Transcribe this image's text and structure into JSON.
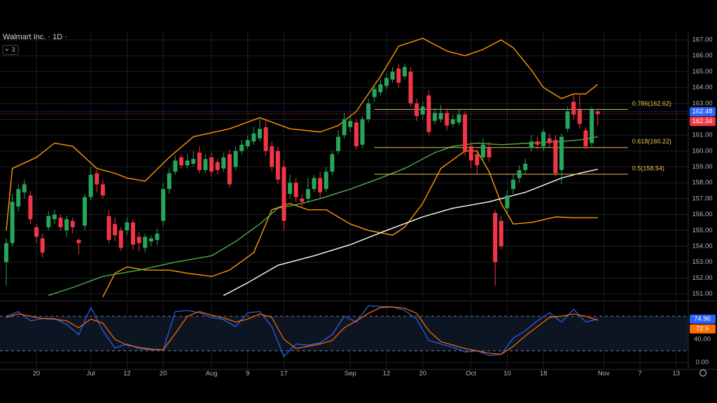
{
  "header": {
    "title": "Walmart Inc. · 1D ·",
    "badge": 3
  },
  "chart_data": [
    {
      "type": "candlestick",
      "up_color": "#26a65b",
      "down_color": "#f23645",
      "grid": true,
      "xlim": [
        -1.04,
        113
      ],
      "ylim": [
        150.65,
        167.53
      ],
      "yticks": [
        {
          "value": 151,
          "label": "151.00"
        },
        {
          "value": 152,
          "label": "152.00"
        },
        {
          "value": 153,
          "label": "153.00"
        },
        {
          "value": 154,
          "label": "154.00"
        },
        {
          "value": 155,
          "label": "155.00"
        },
        {
          "value": 156,
          "label": "156.00"
        },
        {
          "value": 157,
          "label": "157.00"
        },
        {
          "value": 158,
          "label": "158.00"
        },
        {
          "value": 159,
          "label": "159.00"
        },
        {
          "value": 160,
          "label": "160.00"
        },
        {
          "value": 161,
          "label": "161.00"
        },
        {
          "value": 162,
          "label": "162.00"
        },
        {
          "value": 163,
          "label": "163.00"
        },
        {
          "value": 164,
          "label": "164.00"
        },
        {
          "value": 165,
          "label": "165.00"
        },
        {
          "value": 166,
          "label": "166.00"
        },
        {
          "value": 167,
          "label": "167.00"
        }
      ],
      "candles": {
        "open": [
          153.0,
          154.2,
          156.5,
          157.4,
          157.2,
          155.2,
          154.5,
          155.2,
          155.7,
          155.8,
          155.0,
          155.6,
          154.4,
          155.3,
          157.1,
          158.6,
          157.9,
          155.9,
          155.4,
          155.0,
          155.0,
          155.5,
          154.6,
          153.9,
          154.3,
          154.4,
          155.6,
          157.6,
          158.7,
          159.6,
          159.1,
          159.2,
          159.9,
          158.8,
          159.6,
          159.3,
          158.9,
          159.8,
          159.0,
          160.0,
          160.3,
          160.6,
          160.8,
          161.5,
          160.3,
          160.0,
          159.0,
          157.3,
          158.0,
          157.0,
          157.0,
          157.6,
          158.3,
          157.6,
          158.7,
          160.0,
          161.0,
          161.5,
          161.8,
          160.4,
          162.0,
          163.4,
          163.7,
          164.1,
          164.5,
          165.2,
          164.7,
          165.0,
          163.0,
          162.3,
          163.5,
          161.9,
          162.0,
          162.4,
          161.7,
          161.8,
          162.3,
          160.3,
          159.8,
          159.6,
          160.2,
          156.1,
          155.6,
          156.4,
          157.6,
          158.3,
          158.8,
          160.2,
          160.6,
          160.3,
          160.8,
          160.7,
          158.8,
          161.4,
          163.1,
          162.6,
          161.3,
          160.5,
          162.5
        ],
        "high": [
          154.5,
          157.3,
          157.9,
          158.2,
          157.5,
          155.4,
          154.8,
          156.2,
          156.3,
          156.0,
          155.9,
          155.8,
          154.5,
          157.3,
          159.0,
          158.8,
          158.2,
          156.3,
          155.8,
          155.2,
          155.8,
          155.7,
          154.9,
          154.8,
          154.7,
          155.1,
          158.0,
          158.9,
          159.7,
          159.8,
          159.8,
          160.0,
          160.3,
          159.8,
          159.9,
          159.5,
          159.9,
          160.1,
          160.3,
          160.7,
          161.0,
          161.5,
          162.0,
          161.9,
          160.6,
          160.3,
          159.4,
          158.5,
          158.3,
          157.3,
          158.3,
          158.5,
          158.7,
          159.0,
          160.0,
          161.3,
          162.4,
          162.2,
          162.0,
          162.2,
          163.3,
          164.2,
          164.5,
          164.9,
          165.3,
          165.5,
          165.5,
          165.3,
          163.3,
          163.1,
          163.8,
          162.7,
          162.9,
          162.7,
          162.3,
          162.6,
          162.5,
          160.6,
          160.1,
          160.8,
          160.6,
          156.3,
          155.9,
          157.5,
          158.5,
          159.1,
          159.5,
          161.0,
          160.9,
          161.4,
          161.1,
          161.0,
          161.1,
          162.8,
          163.6,
          163.6,
          161.5,
          162.8,
          162.6
        ],
        "low": [
          151.5,
          154.0,
          156.2,
          157.0,
          155.4,
          154.2,
          153.3,
          155.0,
          155.4,
          155.0,
          154.6,
          154.8,
          153.5,
          155.0,
          156.9,
          157.4,
          157.0,
          154.2,
          154.3,
          153.7,
          154.7,
          153.8,
          153.7,
          153.6,
          154.0,
          154.1,
          155.3,
          157.3,
          158.5,
          158.9,
          158.9,
          159.0,
          158.6,
          158.6,
          158.4,
          158.5,
          158.7,
          157.7,
          158.8,
          159.8,
          160.1,
          160.4,
          160.6,
          159.7,
          158.7,
          157.9,
          155.0,
          157.0,
          156.8,
          156.5,
          156.8,
          157.4,
          157.0,
          157.4,
          158.5,
          159.8,
          160.8,
          161.2,
          160.1,
          160.2,
          161.8,
          163.1,
          163.5,
          163.9,
          164.3,
          164.0,
          164.5,
          162.8,
          161.9,
          162.0,
          161.0,
          161.7,
          161.8,
          161.3,
          161.5,
          161.6,
          159.7,
          158.9,
          158.5,
          159.3,
          159.3,
          151.5,
          153.8,
          156.0,
          157.3,
          158.0,
          158.6,
          160.0,
          160.1,
          160.0,
          160.2,
          158.4,
          157.9,
          161.2,
          162.0,
          161.4,
          160.1,
          160.3,
          161.6
        ],
        "close": [
          154.2,
          156.8,
          157.6,
          157.9,
          155.7,
          154.6,
          153.6,
          155.9,
          156.0,
          155.2,
          155.7,
          155.2,
          154.2,
          157.1,
          158.5,
          157.9,
          157.2,
          154.4,
          154.7,
          153.9,
          155.5,
          154.1,
          154.2,
          154.6,
          154.5,
          154.8,
          157.6,
          158.6,
          159.4,
          159.1,
          159.4,
          159.5,
          158.8,
          159.5,
          158.7,
          158.8,
          159.6,
          157.9,
          160.0,
          160.4,
          160.7,
          161.1,
          161.4,
          160.0,
          159.0,
          158.2,
          155.6,
          158.0,
          157.1,
          156.8,
          157.6,
          158.3,
          157.4,
          158.7,
          159.8,
          160.9,
          162.0,
          161.9,
          160.3,
          162.0,
          163.0,
          163.9,
          164.2,
          164.6,
          165.0,
          164.3,
          165.3,
          163.0,
          162.2,
          162.8,
          161.2,
          162.4,
          162.4,
          161.6,
          162.0,
          162.3,
          160.0,
          159.4,
          159.1,
          160.4,
          159.6,
          153.0,
          154.0,
          157.2,
          158.2,
          158.8,
          159.2,
          160.6,
          160.4,
          161.2,
          160.5,
          158.6,
          160.9,
          162.5,
          162.3,
          161.7,
          160.3,
          162.6,
          162.34
        ]
      },
      "series": [
        {
          "color": "#ff9800",
          "x": [
            0,
            1,
            5,
            8,
            11,
            15,
            18,
            20,
            23,
            27,
            31,
            37,
            42,
            47,
            52,
            55,
            58,
            62,
            65,
            69,
            73,
            76,
            79,
            82,
            84,
            87,
            89,
            92,
            94,
            96,
            98
          ],
          "values": [
            155.0,
            158.9,
            159.6,
            160.5,
            160.3,
            158.9,
            158.6,
            158.3,
            158.1,
            159.6,
            160.9,
            161.4,
            162.1,
            161.4,
            161.2,
            161.6,
            162.5,
            164.7,
            166.6,
            167.1,
            166.3,
            166.0,
            166.4,
            167.0,
            166.5,
            165.1,
            164.0,
            163.3,
            163.6,
            163.6,
            164.2
          ]
        },
        {
          "color": "#ff9800",
          "x": [
            16,
            18,
            20,
            23,
            27,
            30,
            34,
            37,
            41,
            44,
            47,
            50,
            53,
            57,
            60,
            64,
            66,
            69,
            72,
            76,
            78,
            80,
            82,
            84,
            87,
            91,
            94,
            98
          ],
          "values": [
            150.8,
            152.3,
            152.7,
            152.5,
            152.5,
            152.3,
            152.1,
            152.5,
            153.6,
            156.3,
            156.7,
            156.3,
            156.3,
            155.4,
            155.0,
            154.7,
            155.2,
            156.7,
            158.9,
            160.0,
            160.0,
            158.7,
            156.7,
            155.4,
            155.5,
            155.85,
            155.8,
            155.8
          ]
        },
        {
          "color": "#4caf50",
          "x": [
            7,
            11,
            16,
            22,
            28,
            34,
            38,
            42,
            45,
            49,
            52,
            57,
            62,
            66,
            71,
            74,
            78,
            82,
            87,
            92,
            95,
            98
          ],
          "values": [
            150.9,
            151.4,
            152.1,
            152.5,
            153.0,
            153.4,
            154.3,
            155.4,
            156.4,
            156.7,
            157.0,
            157.6,
            158.3,
            158.9,
            159.9,
            160.3,
            160.5,
            160.4,
            160.5,
            160.6,
            160.7,
            160.9
          ]
        },
        {
          "color": "#ffffff",
          "x": [
            36,
            40,
            45,
            51,
            57,
            63,
            69,
            74,
            80,
            86,
            92,
            95,
            98
          ],
          "values": [
            150.9,
            151.7,
            152.8,
            153.4,
            154.1,
            155.0,
            155.85,
            156.4,
            156.8,
            157.4,
            158.3,
            158.6,
            158.85
          ]
        }
      ],
      "fib_color": "#f0c24b",
      "fib_range": [
        61,
        103
      ],
      "fib_levels": [
        {
          "label": "0.786(162.62)",
          "value": 162.62
        },
        {
          "label": "0.618(160.22)",
          "value": 160.22
        },
        {
          "label": "0.5(158.54)",
          "value": 158.54
        }
      ],
      "price_labels": [
        {
          "value": 162.48,
          "color": "#2962ff"
        },
        {
          "value": 162.34,
          "color": "#f23645"
        }
      ]
    },
    {
      "type": "line",
      "grid": true,
      "xlim": [
        -1.04,
        113
      ],
      "ylim": [
        -12.1,
        104.2
      ],
      "xticks": [
        {
          "value": 5,
          "label": "20"
        },
        {
          "value": 14,
          "label": "Jul"
        },
        {
          "value": 20,
          "label": "12"
        },
        {
          "value": 26,
          "label": "20"
        },
        {
          "value": 34,
          "label": "Aug"
        },
        {
          "value": 40,
          "label": "9"
        },
        {
          "value": 46,
          "label": "17"
        },
        {
          "value": 57,
          "label": "Sep"
        },
        {
          "value": 63,
          "label": "12"
        },
        {
          "value": 69,
          "label": "20"
        },
        {
          "value": 77,
          "label": "Oct"
        },
        {
          "value": 83,
          "label": "10"
        },
        {
          "value": 89,
          "label": "18"
        },
        {
          "value": 99,
          "label": "Nov"
        },
        {
          "value": 105,
          "label": "7"
        },
        {
          "value": 111,
          "label": "13"
        }
      ],
      "yticks": [
        {
          "value": 40,
          "label": "40.00"
        },
        {
          "value": 0,
          "label": "0.00"
        }
      ],
      "band": [
        20,
        80
      ],
      "x": [
        0,
        2,
        4,
        6,
        8,
        10,
        12,
        14,
        16,
        18,
        20,
        22,
        24,
        26,
        28,
        30,
        32,
        34,
        36,
        38,
        40,
        42,
        44,
        46,
        48,
        50,
        52,
        54,
        56,
        58,
        60,
        62,
        64,
        66,
        68,
        70,
        72,
        74,
        76,
        78,
        80,
        82,
        84,
        86,
        88,
        90,
        92,
        94,
        96,
        98
      ],
      "series": [
        {
          "color": "#2962ff",
          "values": [
            80,
            88,
            72,
            76,
            76,
            66,
            48,
            95,
            55,
            25,
            32,
            24,
            22,
            22,
            88,
            90,
            86,
            78,
            74,
            62,
            86,
            88,
            62,
            10,
            32,
            30,
            34,
            48,
            80,
            70,
            98,
            97,
            96,
            90,
            75,
            38,
            32,
            26,
            18,
            20,
            12,
            14,
            42,
            55,
            72,
            86,
            70,
            92,
            70,
            74.96
          ]
        },
        {
          "color": "#ff6d00",
          "values": [
            78,
            84,
            80,
            76,
            75,
            72,
            60,
            75,
            68,
            40,
            30,
            26,
            23,
            22,
            50,
            80,
            88,
            82,
            77,
            70,
            75,
            84,
            78,
            40,
            24,
            28,
            32,
            38,
            60,
            72,
            85,
            95,
            96,
            94,
            85,
            55,
            36,
            30,
            24,
            20,
            16,
            14,
            28,
            46,
            62,
            78,
            80,
            84,
            80,
            72.9
          ]
        }
      ]
    }
  ]
}
